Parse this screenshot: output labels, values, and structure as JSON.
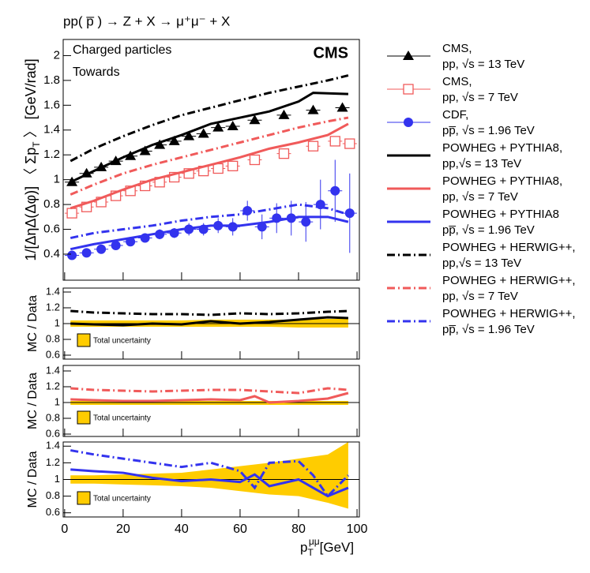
{
  "chart_data": [
    {
      "type": "line",
      "title": "pp( p̅ ) → Z + X → μ⁺μ⁻ + X",
      "annotations": [
        "Charged particles",
        "Towards"
      ],
      "logo": "CMS",
      "y_label": [
        "1/[ΔηΔ(Δφ)] 〈 Σp",
        "T",
        " 〉 [GeV/rad]"
      ],
      "xlim": [
        -0.5,
        100.8
      ],
      "xticks": [
        0,
        20,
        40,
        60,
        80,
        100
      ],
      "xtick_labels": false,
      "ylim": [
        0.19,
        2.13
      ],
      "yticks": [
        0.4,
        0.6,
        0.8,
        1,
        1.2,
        1.4,
        1.6,
        1.8,
        2
      ],
      "series": [
        {
          "name": [
            "CMS,",
            "pp, √s = 13 TeV"
          ],
          "color": "#000000",
          "marker": "triangle",
          "x": [
            2.5,
            7.5,
            12.5,
            17.5,
            22.5,
            27.5,
            32.5,
            37.5,
            42.5,
            47.5,
            52.5,
            57.5,
            65,
            75,
            85,
            95
          ],
          "values": [
            0.98,
            1.05,
            1.1,
            1.15,
            1.19,
            1.23,
            1.28,
            1.31,
            1.35,
            1.37,
            1.42,
            1.43,
            1.48,
            1.52,
            1.56,
            1.58
          ]
        },
        {
          "name": [
            "CMS,",
            "pp, √s = 7 TeV"
          ],
          "color": "#f05a5a",
          "marker": "open-square",
          "x": [
            2.5,
            7.5,
            12.5,
            17.5,
            22.5,
            27.5,
            32.5,
            37.5,
            42.5,
            47.5,
            52.5,
            57.5,
            65,
            75,
            85,
            92.5,
            97.5
          ],
          "values": [
            0.73,
            0.78,
            0.82,
            0.87,
            0.91,
            0.95,
            0.98,
            1.02,
            1.05,
            1.07,
            1.09,
            1.11,
            1.16,
            1.21,
            1.27,
            1.31,
            1.29
          ]
        },
        {
          "name": [
            "CDF,",
            "pp̅, √s = 1.96 TeV"
          ],
          "color": "#3333ee",
          "marker": "circle",
          "x": [
            2.5,
            7.5,
            12.5,
            17.5,
            22.5,
            27.5,
            32.5,
            37.5,
            42.5,
            47.5,
            52.5,
            57.5,
            62.5,
            67.5,
            72.5,
            77.5,
            82.5,
            87.5,
            92.5,
            97.5
          ],
          "values": [
            0.39,
            0.41,
            0.44,
            0.47,
            0.5,
            0.53,
            0.56,
            0.57,
            0.6,
            0.6,
            0.63,
            0.62,
            0.75,
            0.62,
            0.69,
            0.69,
            0.66,
            0.8,
            0.91,
            0.73
          ],
          "errors": [
            0.02,
            0.02,
            0.02,
            0.03,
            0.03,
            0.03,
            0.04,
            0.04,
            0.05,
            0.05,
            0.06,
            0.07,
            0.08,
            0.1,
            0.12,
            0.14,
            0.16,
            0.2,
            0.25,
            0.32
          ]
        },
        {
          "name": [
            "POWHEG + PYTHIA8,",
            "pp,√s = 13 TeV"
          ],
          "color": "#000000",
          "dash": "solid",
          "x": [
            2,
            10,
            20,
            30,
            40,
            50,
            60,
            70,
            80,
            85,
            97
          ],
          "values": [
            0.98,
            1.07,
            1.18,
            1.28,
            1.36,
            1.45,
            1.5,
            1.55,
            1.63,
            1.7,
            1.69
          ]
        },
        {
          "name": [
            "POWHEG + PYTHIA8,",
            "pp, √s = 7 TeV"
          ],
          "color": "#f05a5a",
          "dash": "solid",
          "x": [
            2,
            10,
            20,
            30,
            40,
            50,
            60,
            70,
            80,
            90,
            97
          ],
          "values": [
            0.77,
            0.83,
            0.92,
            1.0,
            1.06,
            1.12,
            1.18,
            1.25,
            1.3,
            1.36,
            1.45
          ]
        },
        {
          "name": [
            "POWHEG + PYTHIA8",
            "pp̅, √s = 1.96 TeV"
          ],
          "color": "#3333ee",
          "dash": "solid",
          "x": [
            2,
            10,
            20,
            30,
            40,
            50,
            60,
            70,
            80,
            90,
            97
          ],
          "values": [
            0.44,
            0.48,
            0.52,
            0.56,
            0.6,
            0.63,
            0.63,
            0.66,
            0.7,
            0.7,
            0.66
          ]
        },
        {
          "name": [
            "POWHEG + HERWIG++,",
            "pp,√s = 13 TeV"
          ],
          "color": "#000000",
          "dash": "dashdot",
          "x": [
            2,
            10,
            20,
            30,
            40,
            50,
            60,
            70,
            80,
            90,
            97
          ],
          "values": [
            1.15,
            1.25,
            1.35,
            1.44,
            1.52,
            1.58,
            1.64,
            1.7,
            1.75,
            1.8,
            1.84
          ]
        },
        {
          "name": [
            "POWHEG + HERWIG++,",
            "pp, √s = 7 TeV"
          ],
          "color": "#f05a5a",
          "dash": "dashdot",
          "x": [
            2,
            10,
            20,
            30,
            40,
            50,
            60,
            70,
            80,
            90,
            97
          ],
          "values": [
            0.88,
            0.96,
            1.05,
            1.12,
            1.18,
            1.24,
            1.3,
            1.36,
            1.42,
            1.47,
            1.5
          ]
        },
        {
          "name": [
            "POWHEG + HERWIG++,",
            "pp̅, √s = 1.96 TeV"
          ],
          "color": "#3333ee",
          "dash": "dashdot",
          "x": [
            2,
            10,
            20,
            30,
            40,
            50,
            60,
            70,
            80,
            90,
            97
          ],
          "values": [
            0.53,
            0.57,
            0.6,
            0.63,
            0.67,
            0.7,
            0.72,
            0.76,
            0.8,
            0.77,
            0.72
          ]
        }
      ]
    },
    {
      "type": "line",
      "y_label": "MC / Data",
      "xlim": [
        -0.5,
        100.8
      ],
      "xticks": [
        0,
        20,
        40,
        60,
        80,
        100
      ],
      "xtick_labels": false,
      "ylim": [
        0.55,
        1.45
      ],
      "yticks": [
        0.6,
        0.8,
        1,
        1.2,
        1.4
      ],
      "reference_line": 1,
      "band": {
        "name": "Total uncertainty",
        "color": "#ffcc00",
        "x": [
          2,
          10,
          20,
          30,
          40,
          50,
          60,
          70,
          80,
          90,
          97
        ],
        "low": [
          0.96,
          0.96,
          0.96,
          0.96,
          0.96,
          0.96,
          0.96,
          0.96,
          0.95,
          0.95,
          0.95
        ],
        "high": [
          1.04,
          1.04,
          1.04,
          1.04,
          1.04,
          1.05,
          1.05,
          1.05,
          1.05,
          1.06,
          1.06
        ]
      },
      "series": [
        {
          "color": "#000000",
          "dash": "solid",
          "x": [
            2,
            10,
            20,
            30,
            40,
            50,
            60,
            70,
            80,
            90,
            97
          ],
          "values": [
            1.0,
            0.99,
            0.98,
            1.0,
            0.99,
            1.03,
            1.0,
            1.02,
            1.05,
            1.08,
            1.07
          ]
        },
        {
          "color": "#000000",
          "dash": "dashdot",
          "x": [
            2,
            10,
            20,
            30,
            40,
            50,
            60,
            70,
            80,
            90,
            97
          ],
          "values": [
            1.16,
            1.14,
            1.13,
            1.12,
            1.12,
            1.11,
            1.13,
            1.12,
            1.13,
            1.15,
            1.16
          ]
        }
      ]
    },
    {
      "type": "line",
      "y_label": "MC / Data",
      "xlim": [
        -0.5,
        100.8
      ],
      "xticks": [
        0,
        20,
        40,
        60,
        80,
        100
      ],
      "xtick_labels": false,
      "ylim": [
        0.57,
        1.47
      ],
      "yticks": [
        0.6,
        0.8,
        1,
        1.2,
        1.4
      ],
      "reference_line": 1,
      "band": {
        "name": "Total uncertainty",
        "color": "#ffcc00",
        "x": [
          2,
          10,
          20,
          30,
          40,
          50,
          60,
          70,
          80,
          90,
          97
        ],
        "low": [
          0.97,
          0.97,
          0.97,
          0.97,
          0.97,
          0.97,
          0.97,
          0.97,
          0.97,
          0.97,
          0.97
        ],
        "high": [
          1.02,
          1.02,
          1.02,
          1.02,
          1.02,
          1.02,
          1.02,
          1.02,
          1.02,
          1.02,
          1.02
        ]
      },
      "series": [
        {
          "color": "#f05a5a",
          "dash": "solid",
          "x": [
            2,
            10,
            20,
            30,
            40,
            50,
            60,
            65,
            70,
            80,
            90,
            97
          ],
          "values": [
            1.04,
            1.03,
            1.02,
            1.02,
            1.03,
            1.04,
            1.03,
            1.08,
            1.0,
            1.02,
            1.05,
            1.12
          ]
        },
        {
          "color": "#f05a5a",
          "dash": "dashdot",
          "x": [
            2,
            10,
            20,
            30,
            40,
            50,
            60,
            70,
            80,
            90,
            97
          ],
          "values": [
            1.18,
            1.16,
            1.15,
            1.14,
            1.15,
            1.16,
            1.16,
            1.14,
            1.12,
            1.18,
            1.16
          ]
        }
      ]
    },
    {
      "type": "line",
      "y_label": "MC / Data",
      "x_label": [
        "p",
        "T",
        "μμ",
        "[GeV]"
      ],
      "xlim": [
        -0.5,
        100.8
      ],
      "xticks": [
        0,
        20,
        40,
        60,
        80,
        100
      ],
      "xtick_labels": true,
      "ylim": [
        0.55,
        1.45
      ],
      "yticks": [
        0.6,
        0.8,
        1,
        1.2,
        1.4
      ],
      "reference_line": 1,
      "band": {
        "name": "Total uncertainty",
        "color": "#ffcc00",
        "x": [
          2,
          10,
          20,
          30,
          40,
          50,
          60,
          70,
          80,
          90,
          97
        ],
        "low": [
          0.95,
          0.95,
          0.94,
          0.93,
          0.92,
          0.9,
          0.86,
          0.82,
          0.8,
          0.72,
          0.65
        ],
        "high": [
          1.05,
          1.05,
          1.06,
          1.07,
          1.08,
          1.12,
          1.16,
          1.2,
          1.25,
          1.3,
          1.45
        ]
      },
      "series": [
        {
          "color": "#3333ee",
          "dash": "solid",
          "x": [
            2,
            10,
            20,
            30,
            40,
            50,
            60,
            65,
            70,
            80,
            85,
            90,
            97
          ],
          "values": [
            1.12,
            1.1,
            1.08,
            1.02,
            0.98,
            1.0,
            0.97,
            1.06,
            0.92,
            1.0,
            0.9,
            0.8,
            0.9
          ]
        },
        {
          "color": "#3333ee",
          "dash": "dashdot",
          "x": [
            2,
            10,
            20,
            30,
            40,
            50,
            60,
            65,
            70,
            80,
            85,
            90,
            97
          ],
          "values": [
            1.35,
            1.3,
            1.25,
            1.2,
            1.15,
            1.2,
            1.1,
            0.9,
            1.2,
            1.22,
            1.05,
            0.8,
            1.05
          ]
        }
      ]
    }
  ]
}
